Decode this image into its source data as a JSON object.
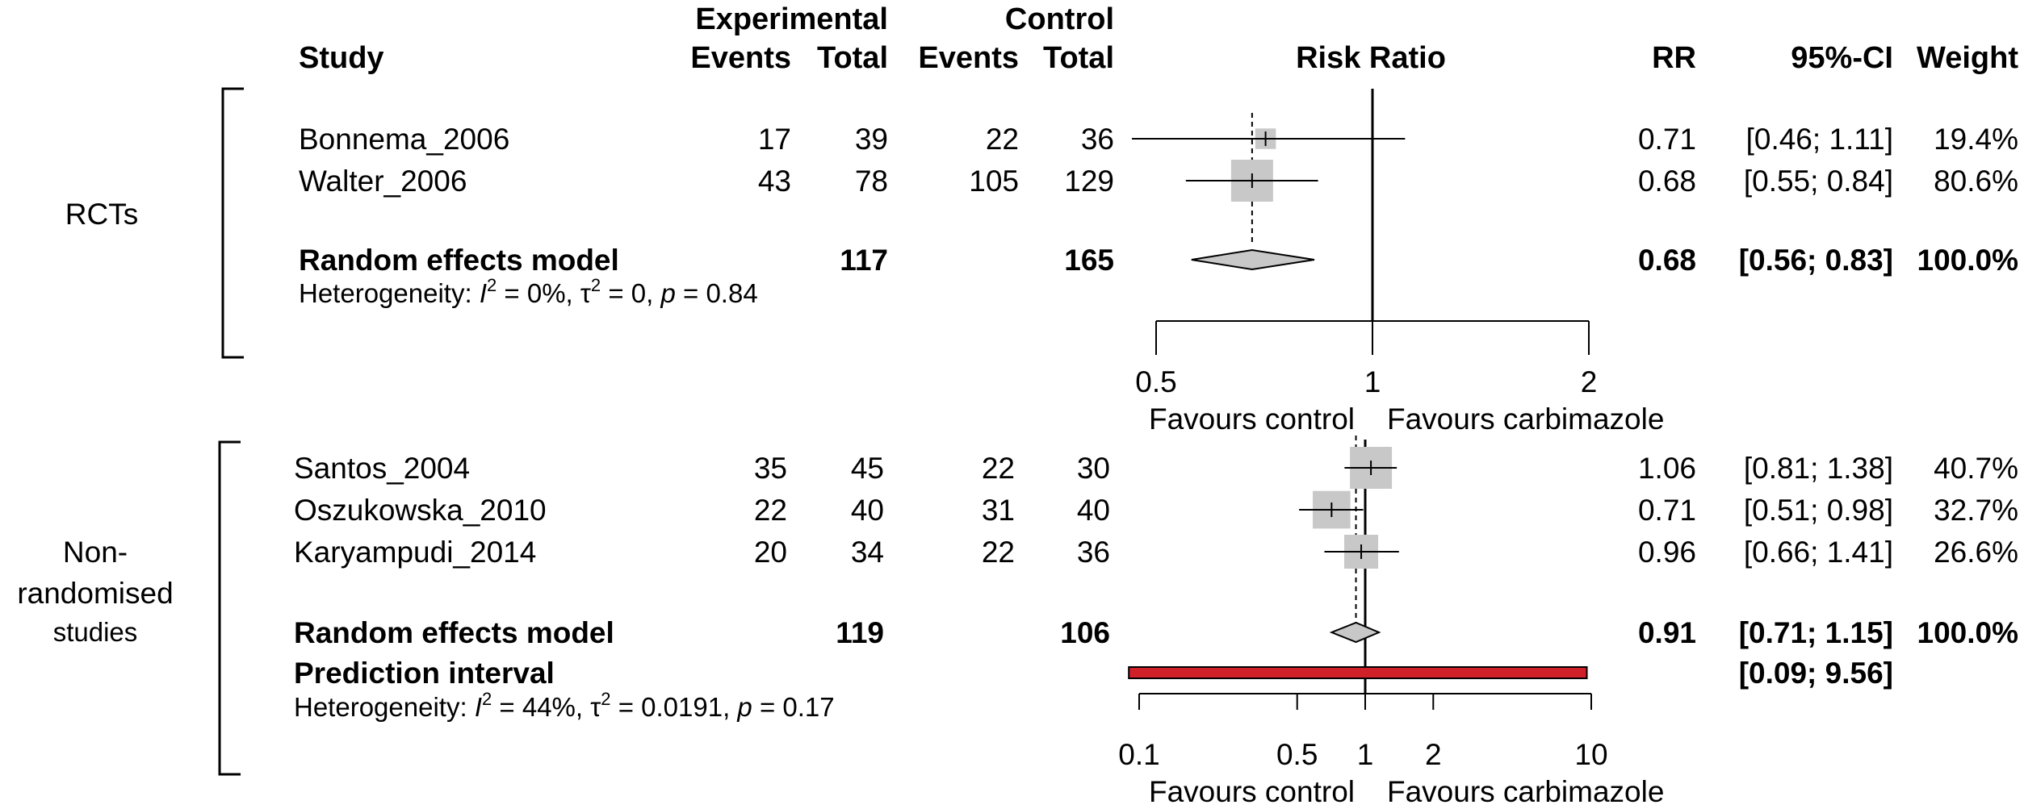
{
  "chart_data": {
    "type": "forest",
    "headers": {
      "study": "Study",
      "experimental": "Experimental",
      "control": "Control",
      "events": "Events",
      "total": "Total",
      "risk_ratio": "Risk Ratio",
      "rr": "RR",
      "ci": "95%-CI",
      "weight": "Weight"
    },
    "panels": [
      {
        "group_label": [
          "RCTs"
        ],
        "axis": {
          "scale": "log",
          "ticks": [
            0.5,
            1,
            2
          ],
          "tick_labels": [
            "0.5",
            "1",
            "2"
          ],
          "xlim": [
            0.5,
            2
          ]
        },
        "favours_left": "Favours control",
        "favours_right": "Favours carbimazole",
        "studies": [
          {
            "name": "Bonnema_2006",
            "exp_events": "17",
            "exp_total": "39",
            "ctrl_events": "22",
            "ctrl_total": "36",
            "rr": 0.71,
            "lower": 0.46,
            "upper": 1.11,
            "rr_text": "0.71",
            "ci_text": "[0.46; 1.11]",
            "weight_text": "19.4%",
            "weight": 19.4
          },
          {
            "name": "Walter_2006",
            "exp_events": "43",
            "exp_total": "78",
            "ctrl_events": "105",
            "ctrl_total": "129",
            "rr": 0.68,
            "lower": 0.55,
            "upper": 0.84,
            "rr_text": "0.68",
            "ci_text": "[0.55; 0.84]",
            "weight_text": "80.6%",
            "weight": 80.6
          }
        ],
        "pooled": {
          "label": "Random effects model",
          "exp_total": "117",
          "ctrl_total": "165",
          "rr": 0.68,
          "lower": 0.56,
          "upper": 0.83,
          "rr_text": "0.68",
          "ci_text": "[0.56; 0.83]",
          "weight_text": "100.0%"
        },
        "prediction": null,
        "heterogeneity": {
          "prefix": "Heterogeneity: ",
          "i2": "0%",
          "tau2": "0",
          "p": "0.84"
        }
      },
      {
        "group_label": [
          "Non-",
          "randomised",
          "studies"
        ],
        "axis": {
          "scale": "log",
          "ticks": [
            0.1,
            0.5,
            1,
            2,
            10
          ],
          "tick_labels": [
            "0.1",
            "0.5",
            "1",
            "2",
            "10"
          ],
          "xlim": [
            0.1,
            10
          ]
        },
        "favours_left": "Favours control",
        "favours_right": "Favours carbimazole",
        "studies": [
          {
            "name": "Santos_2004",
            "exp_events": "35",
            "exp_total": "45",
            "ctrl_events": "22",
            "ctrl_total": "30",
            "rr": 1.06,
            "lower": 0.81,
            "upper": 1.38,
            "rr_text": "1.06",
            "ci_text": "[0.81; 1.38]",
            "weight_text": "40.7%",
            "weight": 40.7
          },
          {
            "name": "Oszukowska_2010",
            "exp_events": "22",
            "exp_total": "40",
            "ctrl_events": "31",
            "ctrl_total": "40",
            "rr": 0.71,
            "lower": 0.51,
            "upper": 0.98,
            "rr_text": "0.71",
            "ci_text": "[0.51; 0.98]",
            "weight_text": "32.7%",
            "weight": 32.7
          },
          {
            "name": "Karyampudi_2014",
            "exp_events": "20",
            "exp_total": "34",
            "ctrl_events": "22",
            "ctrl_total": "36",
            "rr": 0.96,
            "lower": 0.66,
            "upper": 1.41,
            "rr_text": "0.96",
            "ci_text": "[0.66; 1.41]",
            "weight_text": "26.6%",
            "weight": 26.6
          }
        ],
        "pooled": {
          "label": "Random effects model",
          "exp_total": "119",
          "ctrl_total": "106",
          "rr": 0.91,
          "lower": 0.71,
          "upper": 1.15,
          "rr_text": "0.91",
          "ci_text": "[0.71; 1.15]",
          "weight_text": "100.0%"
        },
        "prediction": {
          "label": "Prediction interval",
          "lower": 0.09,
          "upper": 9.56,
          "ci_text": "[0.09; 9.56]"
        },
        "heterogeneity": {
          "prefix": "Heterogeneity: ",
          "i2": "44%",
          "tau2": "0.0191",
          "p": "0.17"
        }
      }
    ],
    "colors": {
      "square": "#c8c8c8",
      "diamond": "#c8c8c8",
      "prediction": "#d0202a"
    }
  }
}
